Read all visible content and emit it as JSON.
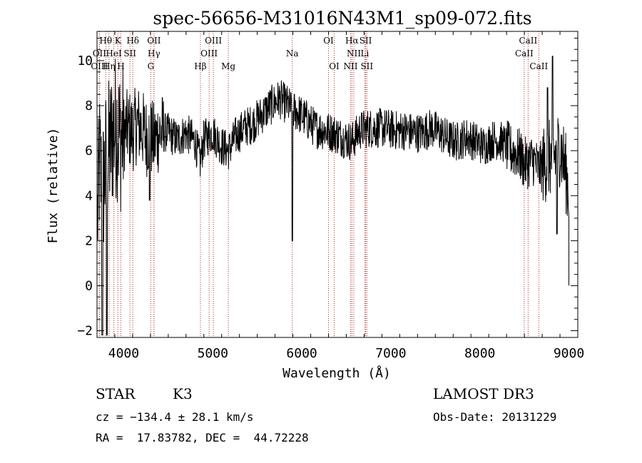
{
  "chart_data": {
    "type": "line",
    "title": "spec-56656-M31016N43M1_sp09-072.fits",
    "xlabel": "Wavelength (Å)",
    "ylabel": "Flux (relative)",
    "xlim": [
      3700,
      9100
    ],
    "ylim": [
      -2.3,
      11.3
    ],
    "x_ticks": [
      4000,
      5000,
      6000,
      7000,
      8000,
      9000
    ],
    "x_tick_labels": [
      "4000",
      "5000",
      "6000",
      "7000",
      "8000",
      "9000"
    ],
    "y_ticks": [
      -2,
      0,
      2,
      4,
      6,
      8,
      10
    ],
    "y_tick_labels": [
      "−2",
      "0",
      "2",
      "4",
      "6",
      "8",
      "10"
    ],
    "line_color": "#000000",
    "marker_color": "#b22222",
    "spectrum_anchors": {
      "x": [
        3700,
        3730,
        3760,
        3800,
        3840,
        3880,
        3920,
        3960,
        4000,
        4050,
        4100,
        4150,
        4200,
        4260,
        4300,
        4340,
        4400,
        4500,
        4600,
        4700,
        4800,
        4860,
        4900,
        5000,
        5100,
        5180,
        5250,
        5350,
        5450,
        5550,
        5650,
        5750,
        5850,
        5890,
        5950,
        6050,
        6150,
        6250,
        6350,
        6450,
        6563,
        6650,
        6750,
        6850,
        6950,
        7050,
        7150,
        7250,
        7350,
        7450,
        7550,
        7650,
        7750,
        7850,
        7950,
        8050,
        8150,
        8250,
        8350,
        8450,
        8500,
        8545,
        8600,
        8662,
        8700,
        8750,
        8800,
        8850,
        8900,
        8950,
        9000
      ],
      "y": [
        2.5,
        5.5,
        4.0,
        5.5,
        6.0,
        6.8,
        7.2,
        6.5,
        6.8,
        7.0,
        6.8,
        7.2,
        7.0,
        6.6,
        6.6,
        6.4,
        6.8,
        6.8,
        6.5,
        6.8,
        6.4,
        5.5,
        6.5,
        6.8,
        6.2,
        6.0,
        6.6,
        7.0,
        7.2,
        7.6,
        8.0,
        8.3,
        8.0,
        7.8,
        7.7,
        7.4,
        7.0,
        6.9,
        6.8,
        6.6,
        6.4,
        6.9,
        7.0,
        7.0,
        7.0,
        6.9,
        6.9,
        6.8,
        6.8,
        7.0,
        6.8,
        6.5,
        6.4,
        6.6,
        6.4,
        6.2,
        6.5,
        6.4,
        6.0,
        5.8,
        5.4,
        5.5,
        5.6,
        5.2,
        5.3,
        5.5,
        5.7,
        5.8,
        6.2,
        5.4,
        4.2
      ]
    },
    "line_markers": [
      {
        "label": "Hθ",
        "x": 3798,
        "row": 0
      },
      {
        "label": "K",
        "x": 3934,
        "row": 0
      },
      {
        "label": "Hδ",
        "x": 4102,
        "row": 0
      },
      {
        "label": "OII",
        "x": 4340,
        "row": 0
      },
      {
        "label": "OIII",
        "x": 5007,
        "row": 0
      },
      {
        "label": "OI",
        "x": 6300,
        "row": 0
      },
      {
        "label": "Hα",
        "x": 6563,
        "row": 0
      },
      {
        "label": "SII",
        "x": 6717,
        "row": 0
      },
      {
        "label": "CaII",
        "x": 8542,
        "row": 0
      },
      {
        "label": "OII",
        "x": 3727,
        "row": 1
      },
      {
        "label": "HeI",
        "x": 3889,
        "row": 1
      },
      {
        "label": "SII",
        "x": 4070,
        "row": 1
      },
      {
        "label": "Hγ",
        "x": 4340,
        "row": 1
      },
      {
        "label": "OIII",
        "x": 4959,
        "row": 1
      },
      {
        "label": "Na",
        "x": 5893,
        "row": 1
      },
      {
        "label": "NII",
        "x": 6584,
        "row": 1
      },
      {
        "label": "Li",
        "x": 6708,
        "row": 1
      },
      {
        "label": "CaII",
        "x": 8498,
        "row": 1
      },
      {
        "label": "OIII",
        "x": 3727,
        "row": 2
      },
      {
        "label": "Hη",
        "x": 3835,
        "row": 2
      },
      {
        "label": "H",
        "x": 3968,
        "row": 2
      },
      {
        "label": "G",
        "x": 4304,
        "row": 2
      },
      {
        "label": "Hβ",
        "x": 4861,
        "row": 2
      },
      {
        "label": "Mg",
        "x": 5175,
        "row": 2
      },
      {
        "label": "OI",
        "x": 6364,
        "row": 2
      },
      {
        "label": "NII",
        "x": 6548,
        "row": 2
      },
      {
        "label": "SII",
        "x": 6731,
        "row": 2
      },
      {
        "label": "CaII",
        "x": 8662,
        "row": 2
      }
    ]
  },
  "info": {
    "object_class": "STAR",
    "subclass": "K3",
    "survey": "LAMOST DR3",
    "cz": "cz = −134.4 ± 28.1 km/s",
    "obs_date": "Obs-Date: 20131229",
    "coords": "RA =  17.83782, DEC =  44.72228"
  }
}
